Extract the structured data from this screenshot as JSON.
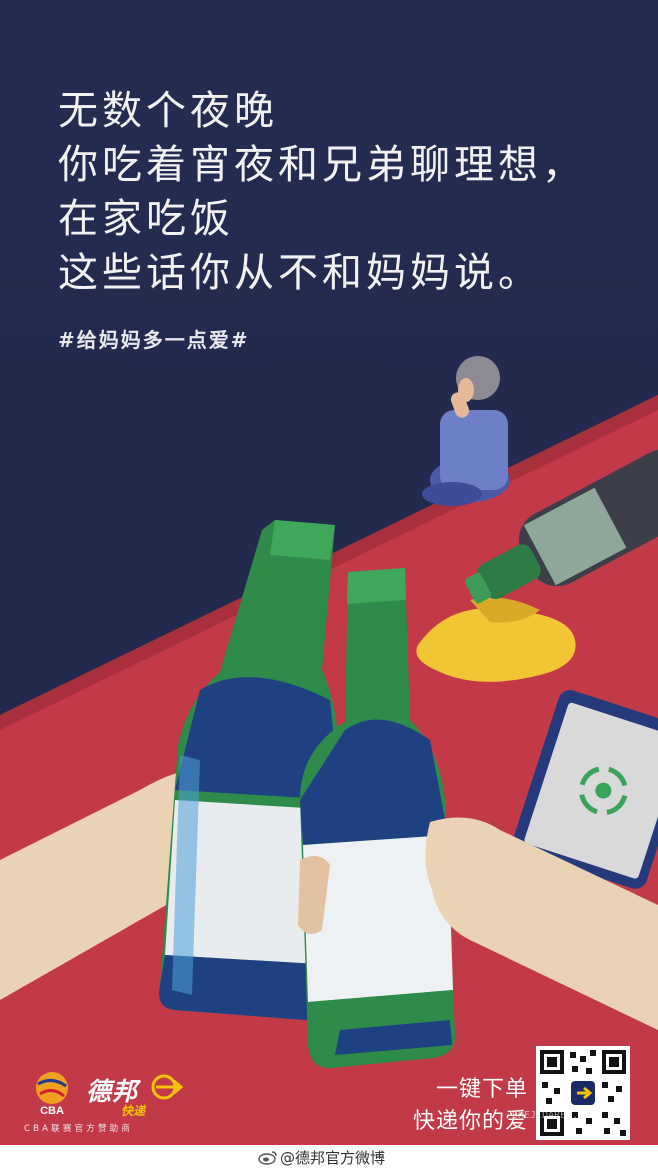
{
  "headline": {
    "lines": [
      "无数个夜晚",
      "你吃着宵夜和兄弟聊理想，",
      "在家吃饭",
      "这些话你从不和妈妈说。"
    ]
  },
  "hashtag": "#给妈妈多一点爱#",
  "brand": {
    "name": "德邦",
    "sub": "快递",
    "sponsor": "CBA联赛官方赞助商",
    "cba_logo_text": "CBA"
  },
  "slogan": {
    "line1": "一键下单",
    "line2": "快递你的爱"
  },
  "watermark": "SHEJIDAREN.COM",
  "caption": "@德邦官方微博",
  "colors": {
    "night_sky": "#222a50",
    "table_red": "#c23a48",
    "bottle_green": "#2f8a4a",
    "label_navy": "#1d3a78",
    "spill_yellow": "#f2c534",
    "brand_yellow": "#f5c40a"
  },
  "icons": {
    "weibo": "weibo-icon",
    "phone_call": "phone-call-icon",
    "qr": "qr-code"
  }
}
